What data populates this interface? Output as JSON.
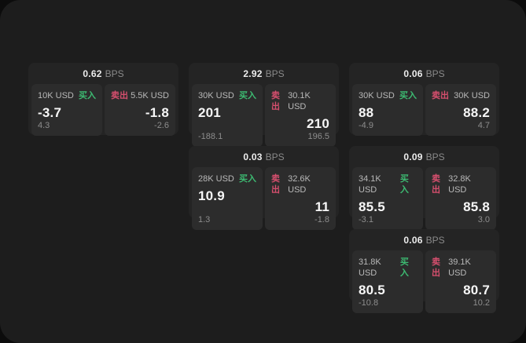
{
  "labels": {
    "bps": "BPS",
    "buy": "买入",
    "sell": "卖出"
  },
  "colors": {
    "buy_accent": "#3dbb72",
    "sell_accent": "#d64f6e",
    "page_bg": "#1d1d1d",
    "card_bg": "#242424",
    "panel_bg": "#2c2c2c"
  },
  "cards": [
    {
      "spread": "0.62",
      "buy": {
        "size": "10K USD",
        "price": "-3.7",
        "sub": "4.3"
      },
      "sell": {
        "size": "5.5K USD",
        "price": "-1.8",
        "sub": "-2.6"
      }
    },
    {
      "spread": "2.92",
      "buy": {
        "size": "30K USD",
        "price": "201",
        "sub": "-188.1"
      },
      "sell": {
        "size": "30.1K USD",
        "price": "210",
        "sub": "196.5"
      }
    },
    {
      "spread": "0.06",
      "buy": {
        "size": "30K USD",
        "price": "88",
        "sub": "-4.9"
      },
      "sell": {
        "size": "30K USD",
        "price": "88.2",
        "sub": "4.7"
      }
    },
    {
      "spread": "0.03",
      "buy": {
        "size": "28K USD",
        "price": "10.9",
        "sub": "1.3"
      },
      "sell": {
        "size": "32.6K USD",
        "price": "11",
        "sub": "-1.8"
      }
    },
    {
      "spread": "0.09",
      "buy": {
        "size": "34.1K USD",
        "price": "85.5",
        "sub": "-3.1"
      },
      "sell": {
        "size": "32.8K USD",
        "price": "85.8",
        "sub": "3.0"
      }
    },
    {
      "spread": "0.06",
      "buy": {
        "size": "31.8K USD",
        "price": "80.5",
        "sub": "-10.8"
      },
      "sell": {
        "size": "39.1K USD",
        "price": "80.7",
        "sub": "10.2"
      }
    }
  ]
}
